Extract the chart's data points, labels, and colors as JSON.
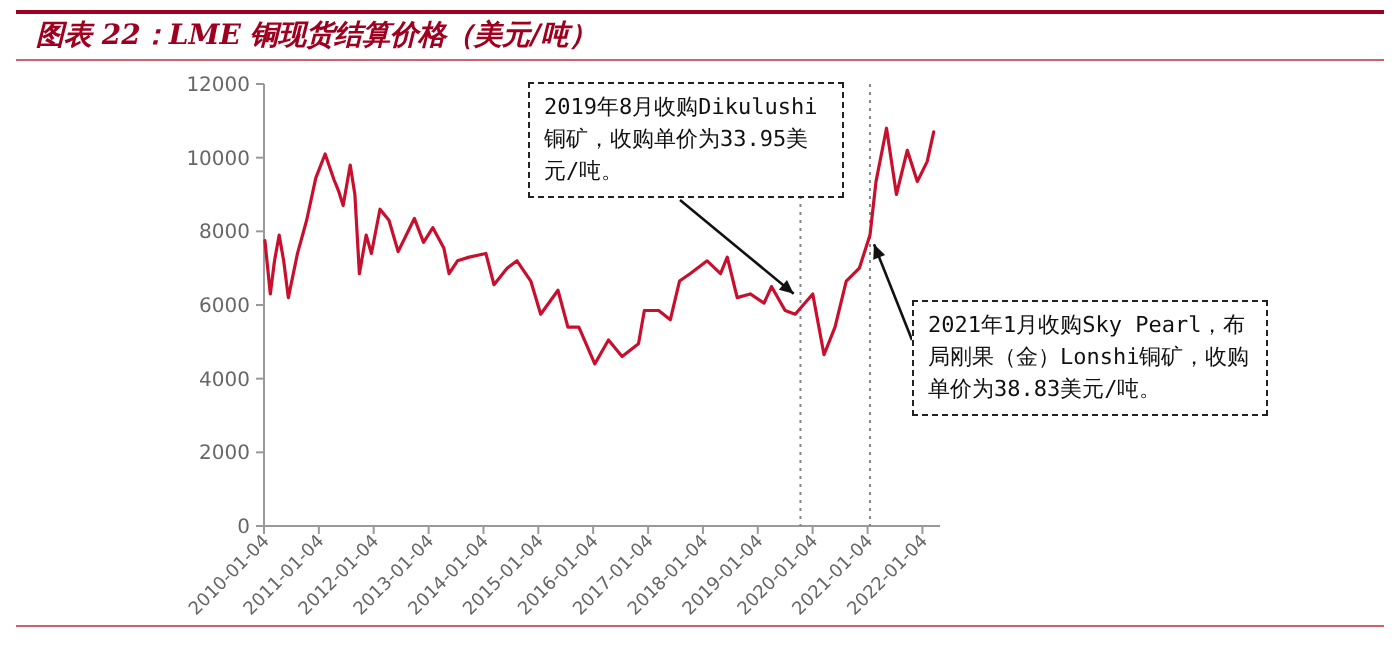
{
  "chart_data": {
    "type": "line",
    "title": "图表 22：LME 铜现货结算价格（美元/吨）",
    "x": [
      "2010-01-10",
      "2010-02-15",
      "2010-03-15",
      "2010-04-15",
      "2010-05-15",
      "2010-06-15",
      "2010-08-15",
      "2010-10-15",
      "2010-12-15",
      "2011-02-15",
      "2011-04-15",
      "2011-05-15",
      "2011-06-15",
      "2011-08-01",
      "2011-09-01",
      "2011-10-01",
      "2011-11-15",
      "2011-12-20",
      "2012-02-15",
      "2012-04-15",
      "2012-06-15",
      "2012-10-01",
      "2012-12-01",
      "2013-02-01",
      "2013-04-15",
      "2013-05-20",
      "2013-07-15",
      "2013-10-01",
      "2014-01-20",
      "2014-03-15",
      "2014-06-10",
      "2014-08-15",
      "2014-11-15",
      "2015-01-20",
      "2015-05-15",
      "2015-07-20",
      "2015-10-01",
      "2016-01-15",
      "2016-04-15",
      "2016-07-15",
      "2016-11-01",
      "2016-12-10",
      "2017-03-15",
      "2017-06-01",
      "2017-08-01",
      "2017-10-10",
      "2018-02-01",
      "2018-05-01",
      "2018-06-15",
      "2018-08-20",
      "2018-11-15",
      "2019-02-15",
      "2019-04-05",
      "2019-07-05",
      "2019-09-10",
      "2020-01-05",
      "2020-03-20",
      "2020-06-01",
      "2020-08-15",
      "2020-11-10",
      "2021-01-20",
      "2021-03-01",
      "2021-05-10",
      "2021-07-15",
      "2021-09-25",
      "2021-12-01",
      "2022-02-05",
      "2022-03-20"
    ],
    "values": [
      7750,
      6300,
      7200,
      7900,
      7200,
      6200,
      7400,
      8300,
      9450,
      10100,
      9400,
      9100,
      8700,
      9800,
      9000,
      6850,
      7900,
      7400,
      8600,
      8300,
      7450,
      8350,
      7700,
      8100,
      7550,
      6850,
      7200,
      7300,
      7400,
      6550,
      7000,
      7200,
      6650,
      5750,
      6400,
      5400,
      5400,
      4400,
      5050,
      4600,
      4950,
      5850,
      5850,
      5600,
      6650,
      6850,
      7200,
      6850,
      7300,
      6200,
      6300,
      6050,
      6500,
      5850,
      5750,
      6300,
      4650,
      5400,
      6650,
      7000,
      7900,
      9350,
      10800,
      9000,
      10200,
      9350,
      9900,
      10700
    ],
    "color": "#c8102e",
    "xlim": [
      "2010-01-04",
      "2022-05-01"
    ],
    "xticks": [
      "2010-01-04",
      "2011-01-04",
      "2012-01-04",
      "2013-01-04",
      "2014-01-04",
      "2015-01-04",
      "2016-01-04",
      "2017-01-04",
      "2018-01-04",
      "2019-01-04",
      "2020-01-04",
      "2021-01-04",
      "2022-01-04"
    ],
    "ylim": [
      0,
      12000
    ],
    "yticks": [
      0,
      2000,
      4000,
      6000,
      8000,
      10000,
      12000
    ],
    "grid": false,
    "marker": "none",
    "line_style": "solid",
    "ref_lines": [
      {
        "axis": "x",
        "value": "2019-10-15",
        "color": "#888888",
        "line_style": "dotted"
      },
      {
        "axis": "x",
        "value": "2021-01-20",
        "color": "#888888",
        "line_style": "dotted"
      }
    ],
    "annotations": [
      {
        "text": "2019年8月收购Dikulushi铜矿，收购单价为33.95美元/吨。",
        "x": "2019-10-01",
        "y": 6200
      },
      {
        "text": "2021年1月收购Sky Pearl，布局刚果（金）Lonshi铜矿，收购单价为38.83美元/吨。",
        "x": "2021-02-01",
        "y": 7800
      }
    ]
  }
}
